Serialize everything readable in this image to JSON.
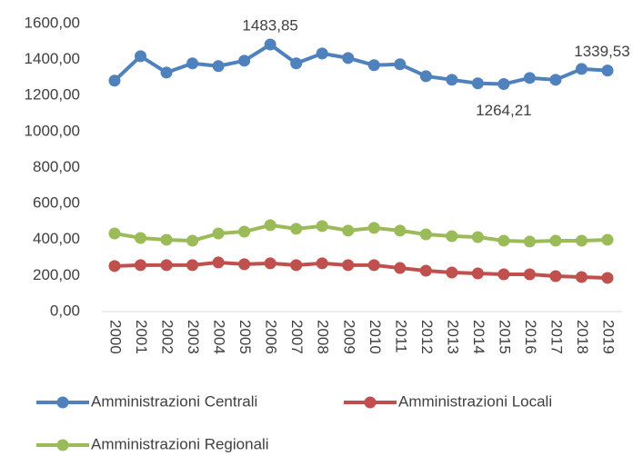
{
  "chart_data": {
    "type": "line",
    "x": [
      "2000",
      "2001",
      "2002",
      "2003",
      "2004",
      "2005",
      "2006",
      "2007",
      "2008",
      "2009",
      "2010",
      "2011",
      "2012",
      "2013",
      "2014",
      "2015",
      "2016",
      "2017",
      "2018",
      "2019"
    ],
    "series": [
      {
        "name": "Amministrazioni Centrali",
        "color": "#4f81bd",
        "values": [
          1283,
          1419,
          1328,
          1379,
          1364,
          1394,
          1483.85,
          1379,
          1434,
          1409,
          1369,
          1374,
          1308,
          1288,
          1268,
          1264.21,
          1298,
          1288,
          1348,
          1339.53
        ],
        "value_labels": [
          null,
          null,
          null,
          null,
          null,
          null,
          "1483,85",
          null,
          null,
          null,
          null,
          null,
          null,
          null,
          null,
          "1264,21",
          null,
          null,
          null,
          "1339,53"
        ]
      },
      {
        "name": "Amministrazioni Locali",
        "color": "#c0504d",
        "values": [
          253,
          258,
          258,
          258,
          273,
          263,
          268,
          258,
          268,
          258,
          258,
          242,
          227,
          217,
          212,
          207,
          207,
          197,
          192,
          187
        ]
      },
      {
        "name": "Amministrazioni Regionali",
        "color": "#9bbb59",
        "values": [
          434,
          409,
          399,
          394,
          434,
          444,
          480,
          460,
          475,
          450,
          465,
          450,
          429,
          419,
          414,
          394,
          389,
          394,
          394,
          399
        ]
      }
    ],
    "ylim": [
      0,
      1600
    ],
    "yticks": [
      {
        "value": 0,
        "label": "0,00"
      },
      {
        "value": 200,
        "label": "200,00"
      },
      {
        "value": 400,
        "label": "400,00"
      },
      {
        "value": 600,
        "label": "600,00"
      },
      {
        "value": 800,
        "label": "800,00"
      },
      {
        "value": 1000,
        "label": "1000,00"
      },
      {
        "value": 1200,
        "label": "1200,00"
      },
      {
        "value": 1400,
        "label": "1400,00"
      },
      {
        "value": 1600,
        "label": "1600,00"
      }
    ],
    "grid": false,
    "legend": "bottom"
  }
}
